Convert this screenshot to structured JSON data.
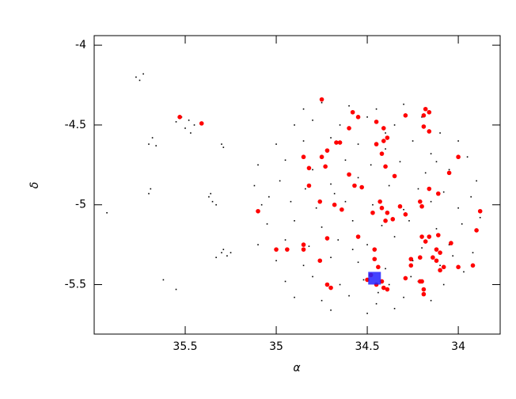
{
  "chart_data": {
    "type": "scatter",
    "xlabel": "α",
    "ylabel": "δ",
    "xlim": [
      36.0,
      33.77
    ],
    "ylim": [
      -5.81,
      -3.94
    ],
    "xticks": [
      35.5,
      35,
      34.5,
      34
    ],
    "yticks": [
      -4,
      -4.5,
      -5,
      -5.5
    ],
    "grid": false,
    "series": [
      {
        "color": "#000000",
        "marker": "dot",
        "x": [
          35.52,
          35.48,
          35.5,
          35.45,
          35.55,
          35.47,
          35.3,
          35.29,
          35.68,
          35.7,
          35.66,
          35.37,
          35.35,
          35.33,
          35.36,
          35.3,
          35.27,
          35.25,
          35.33,
          35.29,
          35.77,
          35.73,
          35.75,
          35.69,
          35.7,
          35.93,
          35.55,
          35.62,
          34.75,
          34.6,
          34.45,
          34.3,
          34.2,
          34.9,
          34.8,
          34.65,
          34.5,
          34.35,
          34.1,
          34.0,
          35.0,
          34.85,
          34.7,
          34.55,
          34.4,
          34.25,
          34.15,
          33.95,
          35.1,
          34.95,
          34.8,
          34.62,
          34.48,
          34.32,
          34.18,
          34.05,
          33.9,
          35.12,
          34.98,
          34.84,
          34.7,
          34.55,
          34.38,
          34.22,
          34.08,
          33.93,
          35.08,
          34.92,
          34.78,
          34.62,
          34.47,
          34.3,
          34.15,
          34.0,
          33.88,
          35.05,
          34.9,
          34.75,
          34.58,
          34.42,
          34.27,
          34.12,
          33.98,
          35.1,
          34.95,
          34.82,
          34.66,
          34.5,
          34.35,
          34.2,
          34.05,
          33.92,
          35.0,
          34.85,
          34.7,
          34.55,
          34.4,
          34.25,
          34.1,
          33.97,
          34.95,
          34.8,
          34.65,
          34.52,
          34.38,
          34.22,
          34.08,
          34.9,
          34.75,
          34.6,
          34.45,
          34.3,
          34.15,
          34.7,
          34.5,
          34.35,
          34.85,
          34.4,
          34.68,
          34.26,
          34.58,
          34.03,
          35.04,
          34.44,
          34.12
        ],
        "y": [
          -4.45,
          -4.47,
          -4.52,
          -4.5,
          -4.48,
          -4.55,
          -4.62,
          -4.64,
          -4.58,
          -4.62,
          -4.63,
          -4.95,
          -4.98,
          -5.0,
          -4.93,
          -5.3,
          -5.32,
          -5.3,
          -5.33,
          -5.28,
          -4.2,
          -4.18,
          -4.22,
          -4.9,
          -4.93,
          -5.05,
          -5.53,
          -5.47,
          -4.36,
          -4.38,
          -4.4,
          -4.37,
          -4.45,
          -4.5,
          -4.47,
          -4.5,
          -4.45,
          -4.5,
          -4.55,
          -4.6,
          -4.62,
          -4.6,
          -4.58,
          -4.62,
          -4.65,
          -4.6,
          -4.68,
          -4.7,
          -4.75,
          -4.72,
          -4.78,
          -4.72,
          -4.75,
          -4.73,
          -4.8,
          -4.78,
          -4.85,
          -4.88,
          -4.85,
          -4.9,
          -4.87,
          -4.83,
          -4.88,
          -4.9,
          -4.92,
          -4.95,
          -5.0,
          -4.98,
          -5.02,
          -4.98,
          -5.0,
          -5.03,
          -4.98,
          -5.02,
          -5.08,
          -5.12,
          -5.1,
          -5.14,
          -5.1,
          -5.13,
          -5.1,
          -5.15,
          -5.12,
          -5.25,
          -5.22,
          -5.26,
          -5.22,
          -5.25,
          -5.2,
          -5.27,
          -5.25,
          -5.3,
          -5.35,
          -5.38,
          -5.33,
          -5.36,
          -5.4,
          -5.35,
          -5.38,
          -5.42,
          -5.48,
          -5.45,
          -5.5,
          -5.47,
          -5.5,
          -5.48,
          -5.5,
          -5.58,
          -5.6,
          -5.57,
          -5.62,
          -5.58,
          -5.6,
          -5.66,
          -5.68,
          -5.65,
          -4.4,
          -4.55,
          -4.93,
          -5.45,
          -5.28,
          -5.32,
          -4.95,
          -5.55,
          -4.73
        ]
      },
      {
        "color": "#ff0000",
        "marker": "circle",
        "x": [
          35.53,
          35.41,
          34.75,
          34.58,
          34.55,
          34.45,
          34.41,
          34.39,
          34.41,
          34.45,
          34.29,
          34.18,
          34.16,
          34.19,
          34.19,
          34.16,
          34.6,
          34.67,
          34.65,
          34.72,
          34.75,
          34.85,
          34.73,
          34.42,
          34.4,
          34.35,
          34.6,
          34.57,
          34.53,
          34.43,
          34.42,
          34.39,
          34.4,
          34.36,
          34.16,
          34.11,
          34.05,
          34.0,
          34.21,
          34.2,
          34.32,
          34.29,
          34.68,
          34.64,
          34.47,
          35.1,
          34.76,
          34.72,
          34.85,
          34.85,
          35.0,
          34.94,
          34.76,
          34.2,
          34.18,
          34.16,
          34.11,
          34.12,
          34.1,
          34.04,
          34.21,
          34.26,
          34.26,
          34.14,
          34.12,
          34.46,
          34.44,
          34.48,
          34.5,
          34.42,
          34.45,
          34.41,
          34.39,
          34.29,
          34.21,
          34.19,
          34.19,
          34.2,
          34.1,
          34.08,
          34.0,
          33.92,
          34.72,
          34.7,
          34.46,
          34.55,
          33.9,
          33.88,
          34.82,
          34.82
        ],
        "y": [
          -4.45,
          -4.49,
          -4.34,
          -4.42,
          -4.45,
          -4.48,
          -4.52,
          -4.58,
          -4.6,
          -4.62,
          -4.44,
          -4.4,
          -4.42,
          -4.44,
          -4.51,
          -4.54,
          -4.52,
          -4.61,
          -4.61,
          -4.66,
          -4.7,
          -4.7,
          -4.76,
          -4.68,
          -4.76,
          -4.82,
          -4.81,
          -4.88,
          -4.89,
          -4.98,
          -5.02,
          -5.05,
          -5.1,
          -5.09,
          -4.9,
          -4.93,
          -4.8,
          -4.7,
          -4.98,
          -5.01,
          -5.01,
          -5.06,
          -5.0,
          -5.03,
          -5.05,
          -5.04,
          -4.98,
          -5.21,
          -5.25,
          -5.28,
          -5.28,
          -5.28,
          -5.35,
          -5.2,
          -5.23,
          -5.2,
          -5.19,
          -5.28,
          -5.3,
          -5.24,
          -5.33,
          -5.34,
          -5.38,
          -5.33,
          -5.35,
          -5.28,
          -5.39,
          -5.44,
          -5.47,
          -5.48,
          -5.5,
          -5.52,
          -5.53,
          -5.46,
          -5.48,
          -5.53,
          -5.56,
          -5.48,
          -5.41,
          -5.39,
          -5.39,
          -5.38,
          -5.5,
          -5.52,
          -5.34,
          -5.2,
          -5.16,
          -5.04,
          -4.88,
          -4.77
        ]
      },
      {
        "color": "#2222ff",
        "marker": "square",
        "x": [
          34.46
        ],
        "y": [
          -5.46
        ]
      }
    ]
  }
}
